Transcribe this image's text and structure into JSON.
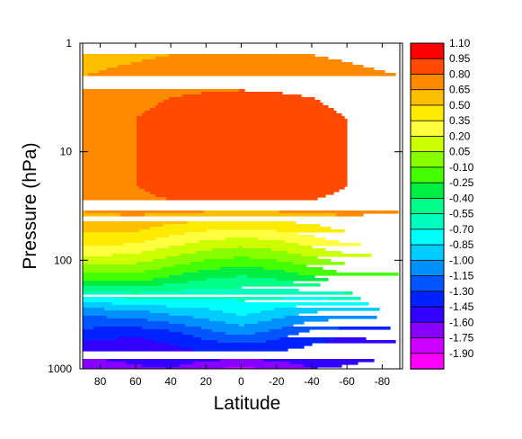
{
  "chart_data": {
    "type": "contour",
    "xlabel": "Latitude",
    "ylabel": "Pressure (hPa)",
    "x_axis": {
      "range": [
        90,
        -90
      ],
      "ticks": [
        80,
        60,
        40,
        20,
        0,
        -20,
        -40,
        -60,
        -80
      ],
      "tick_labels": [
        "80",
        "60",
        "40",
        "20",
        "0",
        "-20",
        "-40",
        "-60",
        "-80"
      ]
    },
    "y_axis": {
      "scale": "log",
      "range": [
        1000,
        1
      ],
      "ticks": [
        1,
        10,
        100,
        1000
      ],
      "tick_labels": [
        "1",
        "10",
        "100",
        "1000"
      ]
    },
    "colorbar": {
      "levels": [
        1.1,
        0.95,
        0.8,
        0.65,
        0.5,
        0.35,
        0.2,
        0.05,
        -0.1,
        -0.25,
        -0.4,
        -0.55,
        -0.7,
        -0.85,
        -1.0,
        -1.15,
        -1.3,
        -1.45,
        -1.6,
        -1.75,
        -1.9
      ],
      "level_labels": [
        "1.10",
        "0.95",
        "0.80",
        "0.65",
        "0.50",
        "0.35",
        "0.20",
        "0.05",
        "-0.10",
        "-0.25",
        "-0.40",
        "-0.55",
        "-0.70",
        "-0.85",
        "-1.00",
        "-1.15",
        "-1.30",
        "-1.45",
        "-1.60",
        "-1.75",
        "-1.90"
      ],
      "colors": [
        "#ff0000",
        "#ff4a00",
        "#ff8a00",
        "#ffbe00",
        "#ffeb00",
        "#ffff40",
        "#ccff00",
        "#88ff00",
        "#44ff00",
        "#00ee44",
        "#00ff88",
        "#00ffbe",
        "#00ffff",
        "#00ccff",
        "#0090ff",
        "#0055ff",
        "#0022ff",
        "#3300ff",
        "#8800ff",
        "#cc00ff",
        "#ff00ff"
      ]
    },
    "field": {
      "latitude": [
        90,
        60,
        40,
        20,
        0,
        -20,
        -40,
        -60,
        -90
      ],
      "pressure_hPa": [
        1000,
        500,
        300,
        200,
        150,
        100,
        70,
        50,
        30,
        20,
        10,
        5,
        2,
        1
      ],
      "values": [
        [
          -1.7,
          -1.62,
          -1.6,
          -1.7,
          -1.8,
          -1.7,
          -1.6,
          -1.62,
          -1.7
        ],
        [
          -1.4,
          -1.45,
          -1.4,
          -1.25,
          -1.15,
          -1.25,
          -1.4,
          -1.45,
          -1.4
        ],
        [
          -1.1,
          -1.05,
          -0.95,
          -0.9,
          -0.8,
          -0.9,
          -1.0,
          -1.05,
          -1.1
        ],
        [
          -0.6,
          -0.55,
          -0.6,
          -0.62,
          -0.62,
          -0.62,
          -0.6,
          -0.55,
          -0.6
        ],
        [
          -0.2,
          -0.2,
          -0.3,
          -0.4,
          -0.45,
          -0.4,
          -0.3,
          -0.2,
          -0.2
        ],
        [
          0.15,
          0.1,
          0.0,
          -0.1,
          -0.15,
          -0.1,
          0.0,
          0.1,
          0.15
        ],
        [
          0.4,
          0.35,
          0.25,
          0.15,
          0.1,
          0.15,
          0.25,
          0.35,
          0.4
        ],
        [
          0.55,
          0.55,
          0.45,
          0.4,
          0.38,
          0.4,
          0.45,
          0.55,
          0.55
        ],
        [
          0.7,
          0.75,
          0.78,
          0.78,
          0.78,
          0.78,
          0.78,
          0.75,
          0.7
        ],
        [
          0.72,
          0.8,
          0.88,
          0.9,
          0.9,
          0.9,
          0.88,
          0.8,
          0.72
        ],
        [
          0.73,
          0.8,
          0.88,
          0.9,
          0.91,
          0.9,
          0.88,
          0.8,
          0.73
        ],
        [
          0.7,
          0.8,
          0.86,
          0.88,
          0.9,
          0.88,
          0.86,
          0.8,
          0.7
        ],
        [
          0.65,
          0.7,
          0.74,
          0.75,
          0.75,
          0.75,
          0.74,
          0.7,
          0.65
        ],
        [
          0.55,
          0.58,
          0.6,
          0.6,
          0.6,
          0.6,
          0.6,
          0.58,
          0.55
        ]
      ]
    }
  }
}
